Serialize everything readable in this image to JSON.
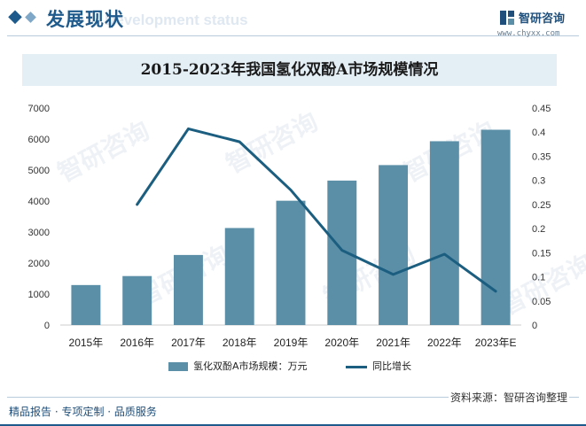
{
  "header": {
    "section_title": "发展现状",
    "section_subtitle": "Development status",
    "brand_name": "智研咨询",
    "brand_url": "www.chyxx.com"
  },
  "watermark": "智研咨询",
  "chart_data": {
    "type": "bar",
    "title": "2015-2023年我国氢化双酚A市场规模情况",
    "categories": [
      "2015年",
      "2016年",
      "2017年",
      "2018年",
      "2019年",
      "2020年",
      "2021年",
      "2022年",
      "2023年E"
    ],
    "series": [
      {
        "name": "氢化双酚A市场规模：万元",
        "type": "bar",
        "axis": "left",
        "color": "#5b8fa8",
        "values": [
          1290,
          1580,
          2260,
          3130,
          4010,
          4660,
          5160,
          5930,
          6300
        ]
      },
      {
        "name": "同比增长",
        "type": "line",
        "axis": "right",
        "color": "#1b5e7f",
        "values": [
          null,
          0.25,
          0.407,
          0.38,
          0.28,
          0.155,
          0.105,
          0.147,
          0.07
        ]
      }
    ],
    "left_axis": {
      "min": 0,
      "max": 7000,
      "step": 1000,
      "ticks": [
        "0",
        "1000",
        "2000",
        "3000",
        "4000",
        "5000",
        "6000",
        "7000"
      ]
    },
    "right_axis": {
      "min": 0,
      "max": 0.45,
      "step": 0.05,
      "ticks": [
        "0",
        "0.05",
        "0.1",
        "0.15",
        "0.2",
        "0.25",
        "0.3",
        "0.35",
        "0.4",
        "0.45"
      ]
    },
    "grid": false,
    "legend_position": "bottom"
  },
  "source": "资料来源：智研咨询整理",
  "footer": "精品报告 · 专项定制 · 品质服务"
}
